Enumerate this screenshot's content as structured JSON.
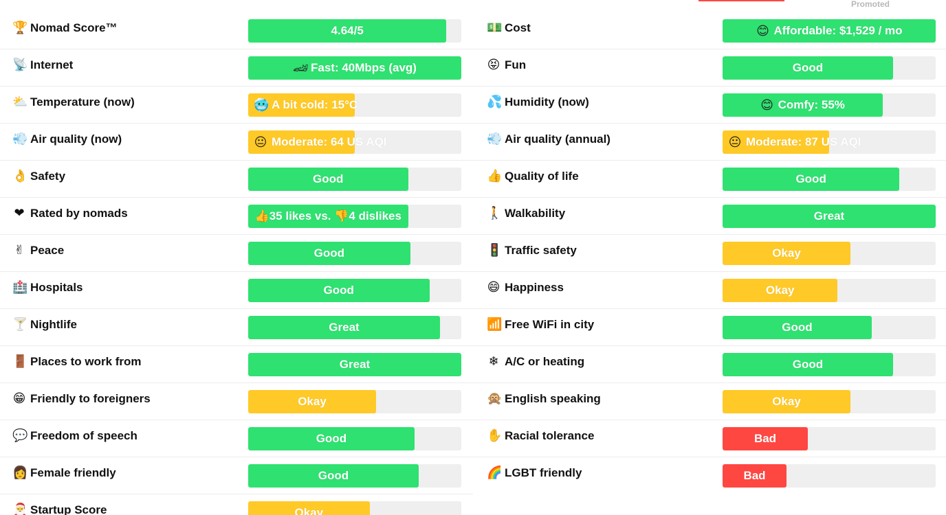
{
  "header": {
    "promoted_label": "Promoted"
  },
  "colors": {
    "green": "#2fe170",
    "yellow": "#ffc927",
    "red": "#ff4742",
    "track": "#efefef"
  },
  "left": [
    {
      "label": "Nomad Score™",
      "icon": "trophy-icon",
      "glyph": "🏆",
      "text": "4.64/5",
      "icon_in_bar": "",
      "status": "green",
      "level": 0.93
    },
    {
      "label": "Internet",
      "icon": "satellite-dish-icon",
      "glyph": "📡",
      "text": "Fast: 40Mbps (avg)",
      "icon_in_bar": "🏎",
      "status": "green",
      "level": 1.0
    },
    {
      "label": "Temperature (now)",
      "icon": "sun-cloud-icon",
      "glyph": "⛅",
      "text": "A bit cold: 15°C",
      "icon_in_bar": "🥶",
      "status": "yellow",
      "level": 0.5,
      "left_align": true
    },
    {
      "label": "Air quality (now)",
      "icon": "wind-icon",
      "glyph": "💨",
      "text": "Moderate: 64 US AQI",
      "icon_in_bar": "😐",
      "status": "yellow",
      "level": 0.5,
      "left_align": true
    },
    {
      "label": "Safety",
      "icon": "ok-hand-icon",
      "glyph": "👌",
      "text": "Good",
      "icon_in_bar": "",
      "status": "green",
      "level": 0.75
    },
    {
      "label": "Rated by nomads",
      "icon": "heart-icon",
      "glyph": "❤",
      "text": "👍35 likes vs. 👎4 dislikes",
      "icon_in_bar": "",
      "status": "green",
      "level": 0.75
    },
    {
      "label": "Peace",
      "icon": "peace-hand-icon",
      "glyph": "✌",
      "text": "Good",
      "icon_in_bar": "",
      "status": "green",
      "level": 0.76
    },
    {
      "label": "Hospitals",
      "icon": "hospital-icon",
      "glyph": "🏥",
      "text": "Good",
      "icon_in_bar": "",
      "status": "green",
      "level": 0.85
    },
    {
      "label": "Nightlife",
      "icon": "cocktail-icon",
      "glyph": "🍸",
      "text": "Great",
      "icon_in_bar": "",
      "status": "green",
      "level": 0.9
    },
    {
      "label": "Places to work from",
      "icon": "door-icon",
      "glyph": "🚪",
      "text": "Great",
      "icon_in_bar": "",
      "status": "green",
      "level": 1.0
    },
    {
      "label": "Friendly to foreigners",
      "icon": "smile-icon",
      "glyph": "😁",
      "text": "Okay",
      "icon_in_bar": "",
      "status": "yellow",
      "level": 0.6
    },
    {
      "label": "Freedom of speech",
      "icon": "speech-icon",
      "glyph": "💬",
      "text": "Good",
      "icon_in_bar": "",
      "status": "green",
      "level": 0.78
    },
    {
      "label": "Female friendly",
      "icon": "woman-icon",
      "glyph": "👩",
      "text": "Good",
      "icon_in_bar": "",
      "status": "green",
      "level": 0.8
    },
    {
      "label": "Startup Score",
      "icon": "santa-icon",
      "glyph": "🎅",
      "text": "Okay",
      "icon_in_bar": "",
      "status": "yellow",
      "level": 0.57
    }
  ],
  "right": [
    {
      "label": "Cost",
      "icon": "money-icon",
      "glyph": "💵",
      "text": "Affordable: $1,529 / mo",
      "icon_in_bar": "😊",
      "status": "green",
      "level": 1.0
    },
    {
      "label": "Fun",
      "icon": "laughing-icon",
      "glyph": "😝",
      "text": "Good",
      "icon_in_bar": "",
      "status": "green",
      "level": 0.8
    },
    {
      "label": "Humidity (now)",
      "icon": "droplets-icon",
      "glyph": "💦",
      "text": "Comfy: 55%",
      "icon_in_bar": "😊",
      "status": "green",
      "level": 0.75
    },
    {
      "label": "Air quality (annual)",
      "icon": "wind-icon",
      "glyph": "💨",
      "text": "Moderate: 87 US AQI",
      "icon_in_bar": "😐",
      "status": "yellow",
      "level": 0.5,
      "left_align": true
    },
    {
      "label": "Quality of life",
      "icon": "thumbs-up-icon",
      "glyph": "👍",
      "text": "Good",
      "icon_in_bar": "",
      "status": "green",
      "level": 0.83
    },
    {
      "label": "Walkability",
      "icon": "walking-person-icon",
      "glyph": "🚶",
      "text": "Great",
      "icon_in_bar": "",
      "status": "green",
      "level": 1.0
    },
    {
      "label": "Traffic safety",
      "icon": "traffic-light-icon",
      "glyph": "🚦",
      "text": "Okay",
      "icon_in_bar": "",
      "status": "yellow",
      "level": 0.6
    },
    {
      "label": "Happiness",
      "icon": "grin-icon",
      "glyph": "😄",
      "text": "Okay",
      "icon_in_bar": "",
      "status": "yellow",
      "level": 0.54
    },
    {
      "label": "Free WiFi in city",
      "icon": "signal-bars-icon",
      "glyph": "📶",
      "text": "Good",
      "icon_in_bar": "",
      "status": "green",
      "level": 0.7
    },
    {
      "label": "A/C or heating",
      "icon": "snowflake-icon",
      "glyph": "❄",
      "text": "Good",
      "icon_in_bar": "",
      "status": "green",
      "level": 0.8
    },
    {
      "label": "English speaking",
      "icon": "monkey-icon",
      "glyph": "🙊",
      "text": "Okay",
      "icon_in_bar": "",
      "status": "yellow",
      "level": 0.6
    },
    {
      "label": "Racial tolerance",
      "icon": "raised-hands-icon",
      "glyph": "✋",
      "text": "Bad",
      "icon_in_bar": "",
      "status": "red",
      "level": 0.4
    },
    {
      "label": "LGBT friendly",
      "icon": "rainbow-icon",
      "glyph": "🌈",
      "text": "Bad",
      "icon_in_bar": "",
      "status": "red",
      "level": 0.3
    }
  ]
}
